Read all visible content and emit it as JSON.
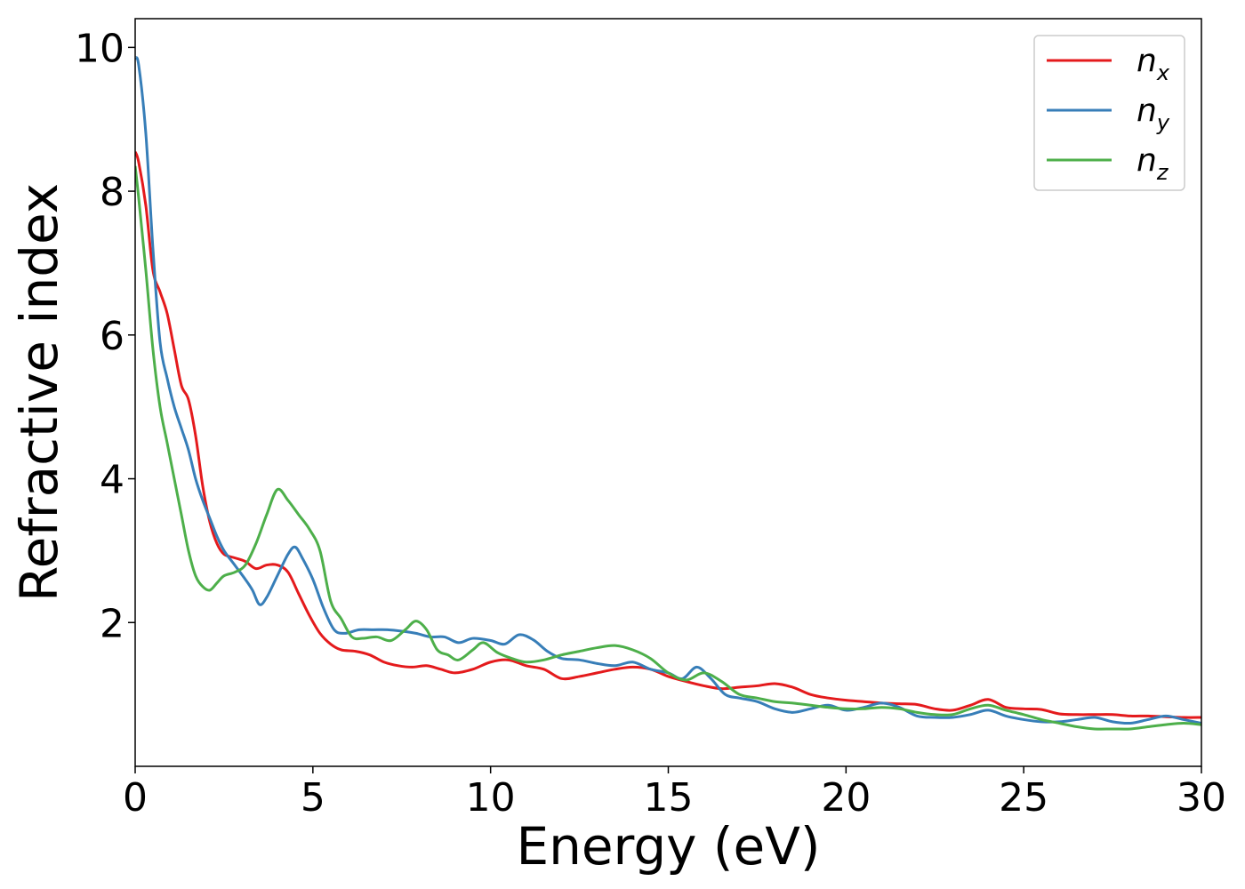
{
  "chart_data": {
    "type": "line",
    "title": "",
    "xlabel": "Energy (eV)",
    "ylabel": "Refractive index",
    "xlim": [
      0,
      30
    ],
    "ylim": [
      0,
      10.4
    ],
    "xticks": [
      0,
      5,
      10,
      15,
      20,
      25,
      30
    ],
    "yticks": [
      2,
      4,
      6,
      8,
      10
    ],
    "grid": false,
    "legend_position": "top-right",
    "series": [
      {
        "name": "n_x",
        "label_base": "n",
        "label_sub": "x",
        "color": "#e41a1c",
        "x": [
          0,
          0.1,
          0.3,
          0.5,
          0.7,
          0.9,
          1.1,
          1.3,
          1.5,
          1.7,
          1.9,
          2.1,
          2.3,
          2.5,
          2.8,
          3.1,
          3.4,
          3.7,
          4.0,
          4.3,
          4.6,
          4.9,
          5.2,
          5.5,
          5.8,
          6.2,
          6.6,
          7.0,
          7.4,
          7.8,
          8.2,
          8.6,
          9.0,
          9.5,
          10.0,
          10.5,
          11.0,
          11.5,
          12.0,
          12.5,
          13.0,
          13.5,
          14.0,
          14.5,
          15.0,
          15.5,
          16.0,
          16.5,
          17.0,
          17.5,
          18.0,
          18.5,
          19.0,
          19.5,
          20.0,
          20.5,
          21.0,
          21.5,
          22.0,
          22.5,
          23.0,
          23.5,
          24.0,
          24.5,
          25.0,
          25.5,
          26.0,
          26.5,
          27.0,
          27.5,
          28.0,
          28.5,
          29.0,
          29.5,
          30.0
        ],
        "y": [
          8.55,
          8.4,
          7.8,
          6.9,
          6.6,
          6.3,
          5.8,
          5.3,
          5.1,
          4.6,
          3.9,
          3.4,
          3.1,
          2.95,
          2.9,
          2.85,
          2.75,
          2.8,
          2.8,
          2.7,
          2.4,
          2.1,
          1.85,
          1.7,
          1.62,
          1.6,
          1.55,
          1.45,
          1.4,
          1.38,
          1.4,
          1.35,
          1.3,
          1.35,
          1.45,
          1.48,
          1.4,
          1.35,
          1.22,
          1.25,
          1.3,
          1.35,
          1.38,
          1.35,
          1.25,
          1.18,
          1.12,
          1.08,
          1.1,
          1.12,
          1.15,
          1.1,
          1.0,
          0.95,
          0.92,
          0.9,
          0.88,
          0.87,
          0.86,
          0.8,
          0.78,
          0.85,
          0.93,
          0.82,
          0.8,
          0.79,
          0.73,
          0.72,
          0.72,
          0.72,
          0.7,
          0.7,
          0.69,
          0.68,
          0.68
        ]
      },
      {
        "name": "n_y",
        "label_base": "n",
        "label_sub": "y",
        "color": "#377eb8",
        "x": [
          0,
          0.1,
          0.3,
          0.5,
          0.7,
          0.9,
          1.1,
          1.3,
          1.5,
          1.7,
          1.9,
          2.1,
          2.3,
          2.5,
          2.8,
          3.1,
          3.3,
          3.5,
          3.7,
          4.0,
          4.3,
          4.5,
          4.7,
          5.0,
          5.3,
          5.6,
          5.9,
          6.3,
          6.7,
          7.1,
          7.5,
          7.9,
          8.3,
          8.7,
          9.1,
          9.5,
          10.0,
          10.4,
          10.8,
          11.2,
          11.6,
          12.0,
          12.5,
          13.0,
          13.5,
          14.0,
          14.5,
          15.0,
          15.4,
          15.8,
          16.2,
          16.6,
          17.0,
          17.5,
          18.0,
          18.5,
          19.0,
          19.5,
          20.0,
          20.5,
          21.0,
          21.5,
          22.0,
          22.5,
          23.0,
          23.5,
          24.0,
          24.5,
          25.0,
          25.5,
          26.0,
          26.5,
          27.0,
          27.5,
          28.0,
          28.5,
          29.0,
          29.5,
          30.0
        ],
        "y": [
          9.85,
          9.75,
          8.8,
          7.2,
          5.9,
          5.4,
          5.0,
          4.7,
          4.4,
          4.0,
          3.7,
          3.45,
          3.2,
          3.0,
          2.8,
          2.6,
          2.45,
          2.25,
          2.35,
          2.65,
          2.95,
          3.05,
          2.9,
          2.6,
          2.2,
          1.9,
          1.85,
          1.9,
          1.9,
          1.9,
          1.88,
          1.85,
          1.8,
          1.8,
          1.72,
          1.78,
          1.75,
          1.7,
          1.83,
          1.76,
          1.6,
          1.5,
          1.48,
          1.43,
          1.4,
          1.45,
          1.35,
          1.3,
          1.22,
          1.38,
          1.22,
          1.0,
          0.95,
          0.9,
          0.8,
          0.75,
          0.8,
          0.85,
          0.78,
          0.82,
          0.88,
          0.82,
          0.7,
          0.68,
          0.68,
          0.72,
          0.78,
          0.7,
          0.65,
          0.62,
          0.62,
          0.65,
          0.68,
          0.62,
          0.6,
          0.65,
          0.7,
          0.65,
          0.6
        ]
      },
      {
        "name": "n_z",
        "label_base": "n",
        "label_sub": "z",
        "color": "#4daf4a",
        "x": [
          0,
          0.1,
          0.3,
          0.5,
          0.7,
          0.9,
          1.1,
          1.3,
          1.5,
          1.7,
          1.9,
          2.1,
          2.3,
          2.5,
          2.8,
          3.1,
          3.4,
          3.7,
          4.0,
          4.3,
          4.6,
          4.9,
          5.2,
          5.5,
          5.8,
          6.1,
          6.4,
          6.8,
          7.2,
          7.6,
          7.9,
          8.2,
          8.5,
          8.8,
          9.1,
          9.5,
          9.8,
          10.2,
          10.6,
          11.0,
          11.5,
          12.0,
          12.5,
          13.0,
          13.5,
          14.0,
          14.5,
          15.0,
          15.5,
          16.0,
          16.5,
          17.0,
          17.5,
          18.0,
          18.5,
          19.0,
          19.5,
          20.0,
          20.5,
          21.0,
          21.5,
          22.0,
          22.5,
          23.0,
          23.5,
          24.0,
          24.5,
          25.0,
          25.5,
          26.0,
          26.5,
          27.0,
          27.5,
          28.0,
          28.5,
          29.0,
          29.5,
          30.0
        ],
        "y": [
          8.35,
          7.9,
          6.9,
          5.8,
          5.0,
          4.5,
          4.0,
          3.5,
          3.0,
          2.65,
          2.5,
          2.45,
          2.55,
          2.65,
          2.7,
          2.8,
          3.1,
          3.5,
          3.85,
          3.7,
          3.5,
          3.3,
          3.0,
          2.3,
          2.05,
          1.8,
          1.78,
          1.8,
          1.75,
          1.9,
          2.02,
          1.9,
          1.62,
          1.55,
          1.48,
          1.62,
          1.72,
          1.58,
          1.5,
          1.45,
          1.48,
          1.55,
          1.6,
          1.65,
          1.68,
          1.62,
          1.5,
          1.3,
          1.2,
          1.3,
          1.18,
          1.0,
          0.95,
          0.9,
          0.88,
          0.85,
          0.82,
          0.8,
          0.8,
          0.82,
          0.8,
          0.75,
          0.72,
          0.72,
          0.8,
          0.85,
          0.78,
          0.72,
          0.65,
          0.6,
          0.55,
          0.52,
          0.52,
          0.52,
          0.55,
          0.58,
          0.6,
          0.58
        ]
      }
    ]
  }
}
